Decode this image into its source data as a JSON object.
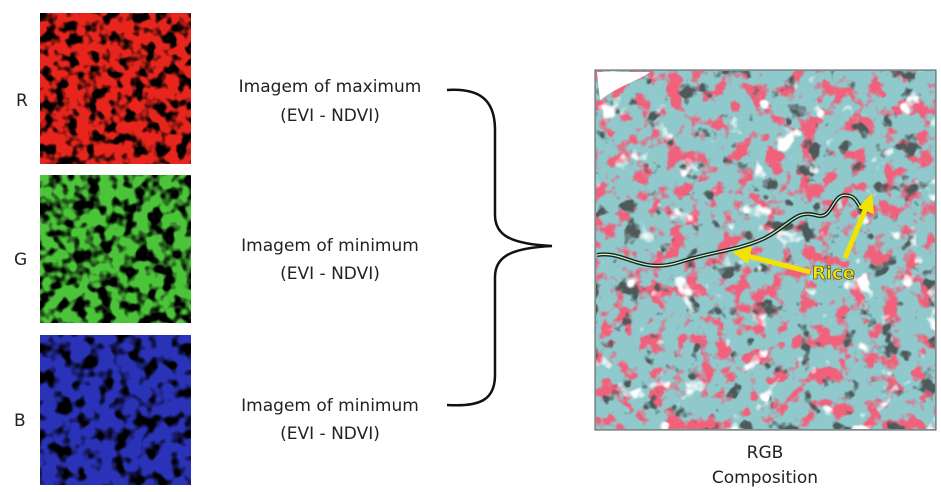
{
  "rows": [
    {
      "channel": "R",
      "label": [
        "Imagem of maximum",
        "(EVI - NDVI)"
      ]
    },
    {
      "channel": "G",
      "label": [
        "Imagem of minimum",
        "(EVI - NDVI)"
      ]
    },
    {
      "channel": "B",
      "label": [
        "Imagem of minimum",
        "(EVI - NDVI)"
      ]
    }
  ],
  "composite": {
    "annotation": "Rice",
    "caption": [
      "RGB",
      "Composition"
    ]
  }
}
